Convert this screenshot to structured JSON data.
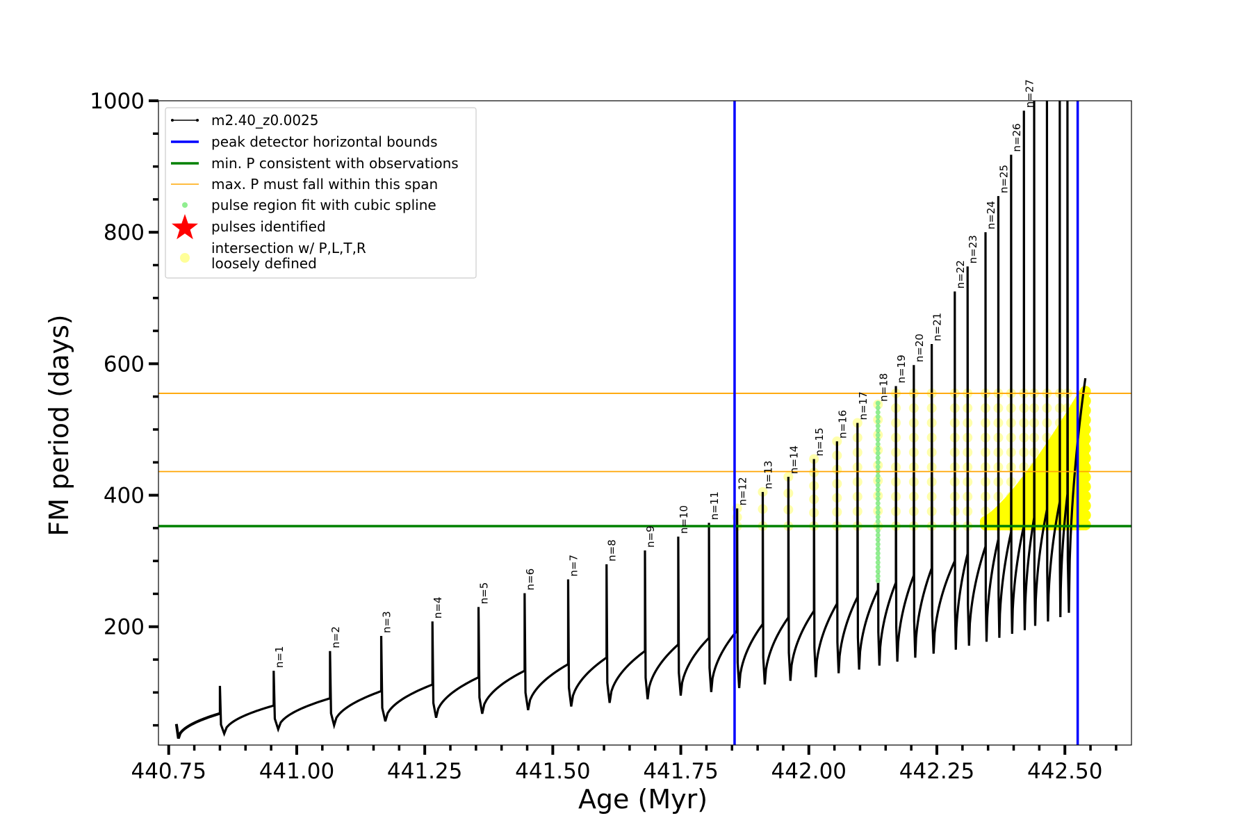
{
  "chart_data": {
    "type": "line",
    "xlabel": "Age (Myr)",
    "ylabel": "FM period (days)",
    "xlim": [
      440.73,
      442.63
    ],
    "ylim": [
      20,
      1000
    ],
    "x_ticks": [
      440.75,
      441.0,
      441.25,
      441.5,
      441.75,
      442.0,
      442.25,
      442.5
    ],
    "x_tick_labels": [
      "440.75",
      "441.00",
      "441.25",
      "441.50",
      "441.75",
      "442.00",
      "442.25",
      "442.50"
    ],
    "y_ticks": [
      200,
      400,
      600,
      800,
      1000
    ],
    "y_tick_labels": [
      "200",
      "400",
      "600",
      "800",
      "1000"
    ],
    "legend": {
      "placement": "upper-left",
      "entries": [
        {
          "label": "m2.40_z0.0025",
          "color": "#000000",
          "style": "line-dots"
        },
        {
          "label": "peak detector horizontal bounds",
          "color": "#0000ff",
          "style": "thick-line"
        },
        {
          "label": "min. P consistent with observations",
          "color": "#008000",
          "style": "thick-line"
        },
        {
          "label": "max. P must fall within this span",
          "color": "#ffa500",
          "style": "thin-line"
        },
        {
          "label": "pulse region fit with cubic spline",
          "color": "#90ee90",
          "style": "dot"
        },
        {
          "label": "pulses identified",
          "color": "#ff0000",
          "style": "star"
        },
        {
          "label": "intersection w/ P,L,T,R",
          "label2": "loosely defined",
          "color": "#ffff99",
          "style": "circle"
        }
      ]
    },
    "vertical_lines": [
      {
        "x": 441.855,
        "color": "#0000ff",
        "meaning": "peak detector horizontal bounds"
      },
      {
        "x": 442.525,
        "color": "#0000ff",
        "meaning": "peak detector horizontal bounds"
      }
    ],
    "horizontal_lines": [
      {
        "y": 353,
        "color": "#008000",
        "meaning": "min. P consistent with observations"
      },
      {
        "y": 436,
        "color": "#ffa500",
        "meaning": "max. P span lower"
      },
      {
        "y": 555,
        "color": "#ffa500",
        "meaning": "max. P span upper"
      }
    ],
    "initial": {
      "x": 440.765,
      "y": 52
    },
    "pre_pulse": {
      "x": 440.85,
      "peak": 110,
      "base": 68
    },
    "pulses": [
      {
        "n": "n=1",
        "x": 440.955,
        "peak": 133,
        "base": 80
      },
      {
        "n": "n=2",
        "x": 441.065,
        "peak": 163,
        "base": 91
      },
      {
        "n": "n=3",
        "x": 441.165,
        "peak": 186,
        "base": 102
      },
      {
        "n": "n=4",
        "x": 441.265,
        "peak": 208,
        "base": 112
      },
      {
        "n": "n=5",
        "x": 441.355,
        "peak": 230,
        "base": 123
      },
      {
        "n": "n=6",
        "x": 441.445,
        "peak": 251,
        "base": 133
      },
      {
        "n": "n=7",
        "x": 441.53,
        "peak": 272,
        "base": 143
      },
      {
        "n": "n=8",
        "x": 441.605,
        "peak": 295,
        "base": 153
      },
      {
        "n": "n=9",
        "x": 441.68,
        "peak": 316,
        "base": 163
      },
      {
        "n": "n=10",
        "x": 441.745,
        "peak": 337,
        "base": 173
      },
      {
        "n": "n=11",
        "x": 441.805,
        "peak": 358,
        "base": 183
      },
      {
        "n": "n=12",
        "x": 441.86,
        "peak": 380,
        "base": 194
      },
      {
        "n": "n=13",
        "x": 441.91,
        "peak": 405,
        "base": 204
      },
      {
        "n": "n=14",
        "x": 441.96,
        "peak": 428,
        "base": 214
      },
      {
        "n": "n=15",
        "x": 442.01,
        "peak": 455,
        "base": 224
      },
      {
        "n": "n=16",
        "x": 442.055,
        "peak": 482,
        "base": 235
      },
      {
        "n": "n=17",
        "x": 442.095,
        "peak": 510,
        "base": 245
      },
      {
        "n": "n=18",
        "x": 442.135,
        "peak": 538,
        "base": 256
      },
      {
        "n": "n=19",
        "x": 442.17,
        "peak": 566,
        "base": 267
      },
      {
        "n": "n=20",
        "x": 442.205,
        "peak": 598,
        "base": 278
      },
      {
        "n": "n=21",
        "x": 442.24,
        "peak": 630,
        "base": 289
      },
      {
        "n": "n=22",
        "x": 442.285,
        "peak": 710,
        "base": 300
      },
      {
        "n": "n=23",
        "x": 442.31,
        "peak": 748,
        "base": 311
      },
      {
        "n": "n=24",
        "x": 442.345,
        "peak": 800,
        "base": 322
      },
      {
        "n": "n=25",
        "x": 442.37,
        "peak": 855,
        "base": 333
      },
      {
        "n": "n=26",
        "x": 442.395,
        "peak": 918,
        "base": 344
      },
      {
        "n": "n=27",
        "x": 442.42,
        "peak": 985,
        "base": 354
      }
    ],
    "extra_peaks": [
      {
        "x": 442.44,
        "peak": 1000,
        "base": 366
      },
      {
        "x": 442.465,
        "peak": 1000,
        "base": 378
      },
      {
        "x": 442.49,
        "peak": 1000,
        "base": 390
      },
      {
        "x": 442.505,
        "peak": 1000,
        "base": 402
      }
    ],
    "final_point": {
      "x": 442.54,
      "y": 578
    },
    "green_spline_x": 442.135
  }
}
